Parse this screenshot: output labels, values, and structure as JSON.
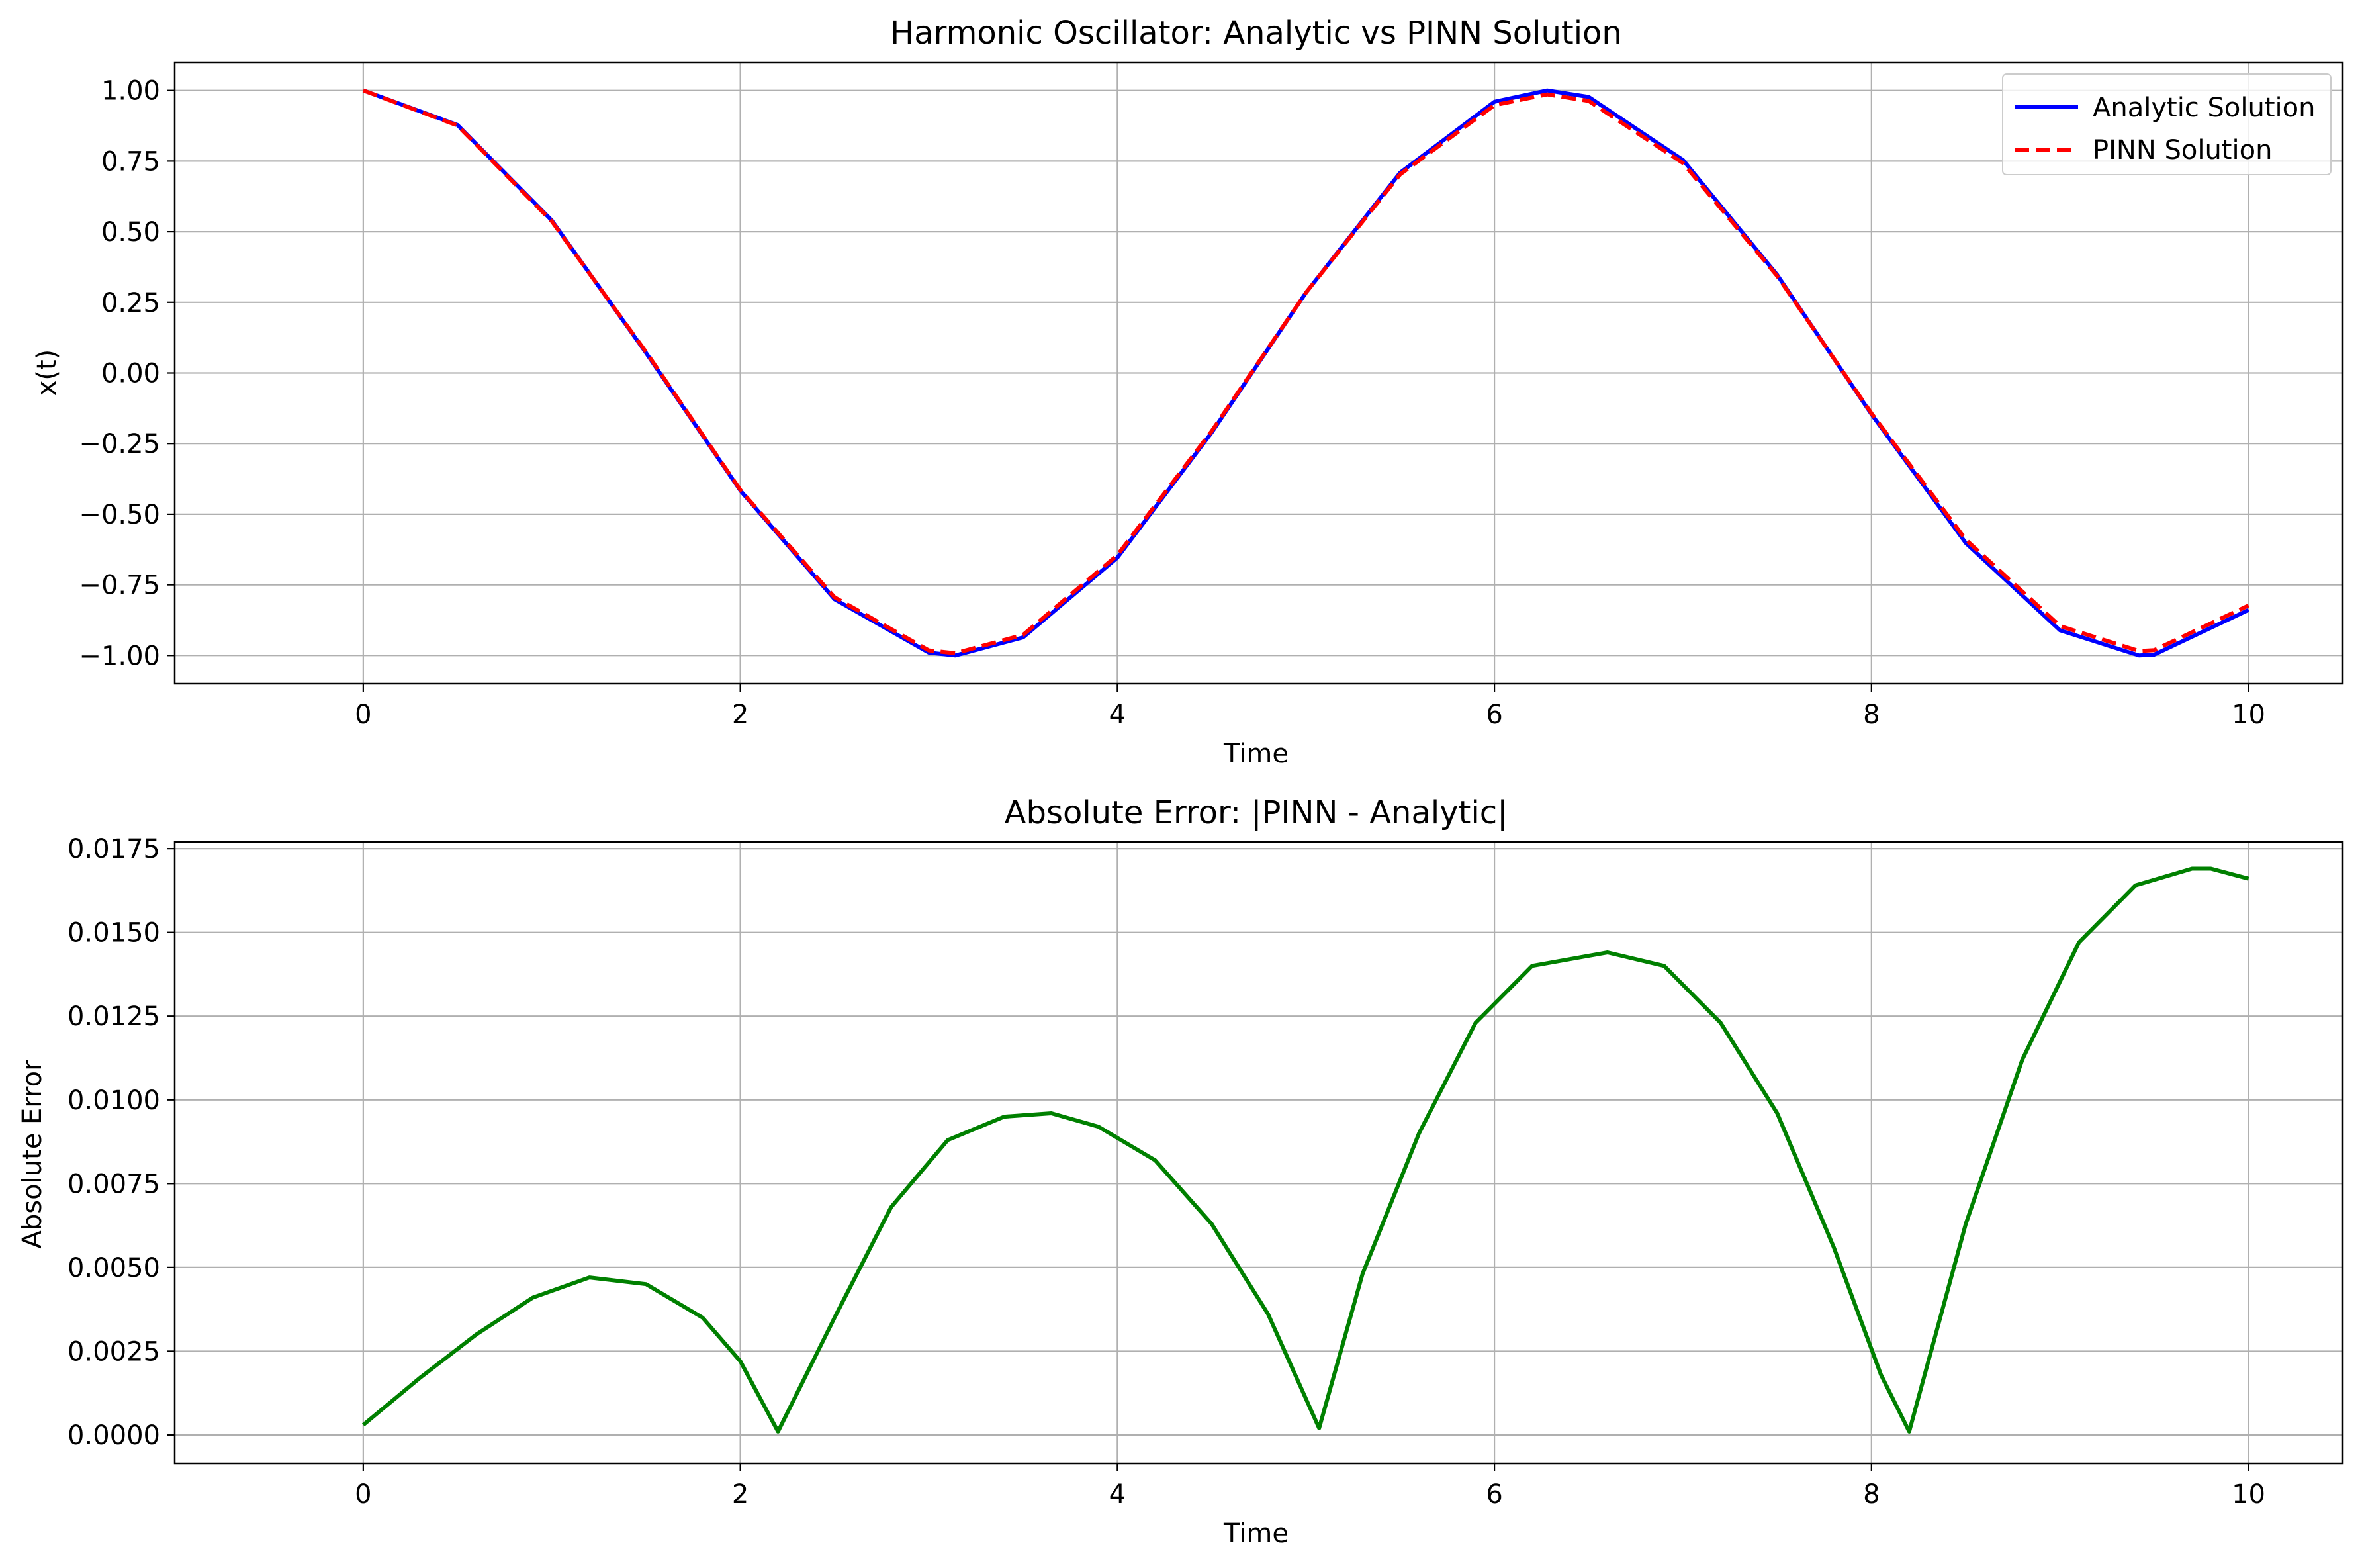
{
  "figure": {
    "background": "#ffffff"
  },
  "chart_data": [
    {
      "type": "line",
      "title": "Harmonic Oscillator: Analytic vs PINN Solution",
      "xlabel": "Time",
      "ylabel": "x(t)",
      "xlim": [
        -1.0,
        10.5
      ],
      "ylim": [
        -1.1,
        1.1
      ],
      "xticks": [
        0,
        2,
        4,
        6,
        8,
        10
      ],
      "xtick_labels": [
        "0",
        "2",
        "4",
        "6",
        "8",
        "10"
      ],
      "yticks": [
        1.0,
        0.75,
        0.5,
        0.25,
        0.0,
        -0.25,
        -0.5,
        -0.75,
        -1.0
      ],
      "ytick_labels": [
        "1.00",
        "0.75",
        "0.50",
        "0.25",
        "0.00",
        "−0.25",
        "−0.50",
        "−0.75",
        "−1.00"
      ],
      "grid": true,
      "legend_position": "top-right",
      "series": [
        {
          "name": "Analytic Solution",
          "color": "#0000ff",
          "style": "solid",
          "x": [
            0,
            0.5,
            1.0,
            1.5,
            2.0,
            2.5,
            3.0,
            3.14,
            3.5,
            4.0,
            4.5,
            5.0,
            5.5,
            6.0,
            6.28,
            6.5,
            7.0,
            7.5,
            8.0,
            8.5,
            9.0,
            9.42,
            9.5,
            10.0
          ],
          "y": [
            1.0,
            0.878,
            0.54,
            0.071,
            -0.416,
            -0.801,
            -0.99,
            -1.0,
            -0.936,
            -0.654,
            -0.211,
            0.284,
            0.709,
            0.96,
            1.0,
            0.977,
            0.754,
            0.347,
            -0.146,
            -0.602,
            -0.911,
            -1.0,
            -0.997,
            -0.839
          ]
        },
        {
          "name": "PINN Solution",
          "color": "#ff0000",
          "style": "dashed",
          "x": [
            0,
            0.5,
            1.0,
            1.5,
            2.0,
            2.5,
            3.0,
            3.14,
            3.5,
            4.0,
            4.5,
            5.0,
            5.5,
            6.0,
            6.28,
            6.5,
            7.0,
            7.5,
            8.0,
            8.5,
            9.0,
            9.42,
            9.5,
            10.0
          ],
          "y": [
            1.0,
            0.876,
            0.537,
            0.074,
            -0.414,
            -0.794,
            -0.982,
            -0.992,
            -0.927,
            -0.645,
            -0.206,
            0.284,
            0.703,
            0.948,
            0.986,
            0.963,
            0.743,
            0.343,
            -0.143,
            -0.59,
            -0.896,
            -0.984,
            -0.981,
            -0.823
          ]
        }
      ]
    },
    {
      "type": "line",
      "title": "Absolute Error: |PINN - Analytic|",
      "xlabel": "Time",
      "ylabel": "Absolute Error",
      "xlim": [
        -1.0,
        10.5
      ],
      "ylim": [
        -0.00085,
        0.0177
      ],
      "xticks": [
        0,
        2,
        4,
        6,
        8,
        10
      ],
      "xtick_labels": [
        "0",
        "2",
        "4",
        "6",
        "8",
        "10"
      ],
      "yticks": [
        0.0175,
        0.015,
        0.0125,
        0.01,
        0.0075,
        0.005,
        0.0025,
        0.0
      ],
      "ytick_labels": [
        "0.0175",
        "0.0150",
        "0.0125",
        "0.0100",
        "0.0075",
        "0.0050",
        "0.0025",
        "0.0000"
      ],
      "grid": true,
      "series": [
        {
          "color": "#008000",
          "style": "solid",
          "x": [
            0,
            0.3,
            0.6,
            0.9,
            1.2,
            1.5,
            1.8,
            2.0,
            2.2,
            2.5,
            2.8,
            3.1,
            3.4,
            3.65,
            3.9,
            4.2,
            4.5,
            4.8,
            5.07,
            5.3,
            5.6,
            5.9,
            6.2,
            6.5,
            6.6,
            6.9,
            7.2,
            7.5,
            7.8,
            8.05,
            8.2,
            8.5,
            8.8,
            9.1,
            9.4,
            9.7,
            9.8,
            10.0
          ],
          "y": [
            0.0003,
            0.0017,
            0.003,
            0.0041,
            0.0047,
            0.0045,
            0.0035,
            0.0022,
            0.0001,
            0.0035,
            0.0068,
            0.0088,
            0.0095,
            0.0096,
            0.0092,
            0.0082,
            0.0063,
            0.0036,
            0.0002,
            0.0048,
            0.009,
            0.0123,
            0.014,
            0.0143,
            0.0144,
            0.014,
            0.0123,
            0.0096,
            0.0056,
            0.0018,
            0.0001,
            0.0063,
            0.0112,
            0.0147,
            0.0164,
            0.0169,
            0.0169,
            0.0166
          ]
        }
      ]
    }
  ]
}
